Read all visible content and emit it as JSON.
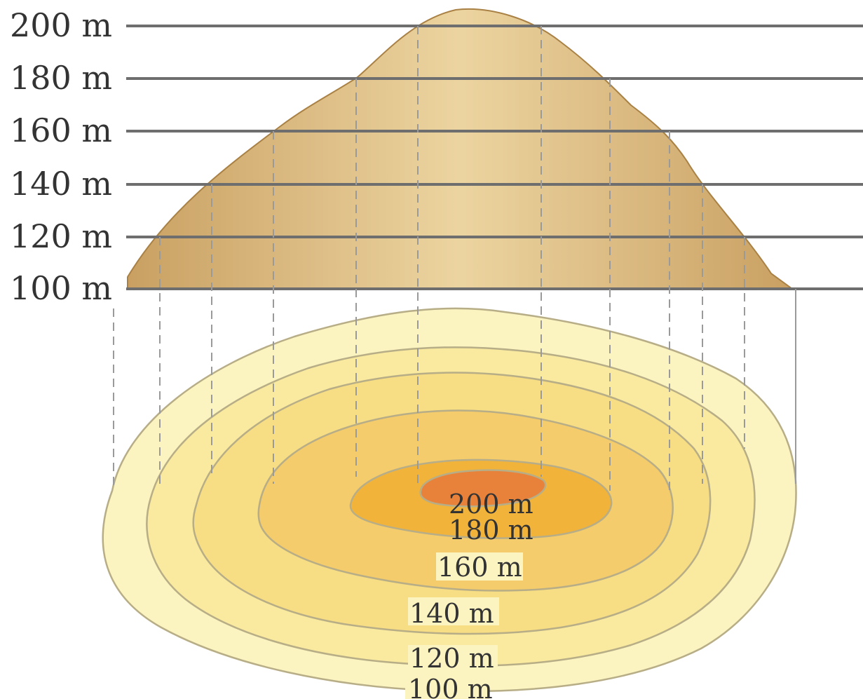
{
  "elevations": [
    "200 m",
    "180 m",
    "160 m",
    "140 m",
    "120 m",
    "100 m"
  ],
  "contour_labels": [
    "200 m",
    "180 m",
    "160 m",
    "140 m",
    "120 m",
    "100 m"
  ],
  "colors": {
    "hill_dark": "#c9a062",
    "hill_light": "#ecd4a0",
    "contour_100": "#fbf3c0",
    "contour_120": "#f9ea9f",
    "contour_140": "#f7dd84",
    "contour_160": "#f5cc6c",
    "contour_180": "#f2b33a",
    "contour_200": "#e8823a"
  }
}
